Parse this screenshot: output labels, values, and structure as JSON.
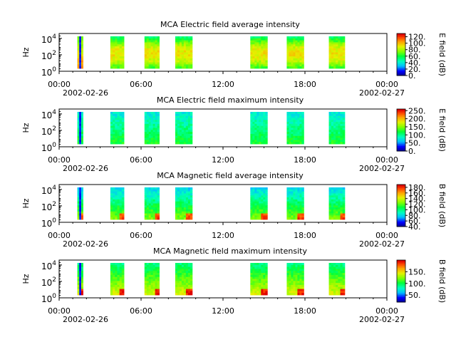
{
  "chart_data": [
    {
      "type": "heatmap",
      "title": "MCA  Electric field average intensity",
      "ylabel": "Hz",
      "ytick_labels": [
        {
          "base": "10",
          "exp": "0"
        },
        {
          "base": "10",
          "exp": "2"
        },
        {
          "base": "10",
          "exp": "4"
        }
      ],
      "xtick_labels": [
        "00:00",
        "06:00",
        "12:00",
        "18:00",
        "00:00"
      ],
      "date_labels": [
        "2002-02-26",
        "2002-02-27"
      ],
      "colorbar": {
        "label": "E field (dB)",
        "range": [
          0,
          130
        ],
        "tick_labels": [
          "0.",
          "20.",
          "40.",
          "60.",
          "80.",
          "100.",
          "120."
        ],
        "tick_values": [
          0,
          20,
          40,
          60,
          80,
          100,
          120
        ]
      },
      "style": "avg-e"
    },
    {
      "type": "heatmap",
      "title": "MCA  Electric field maximum intensity",
      "ylabel": "Hz",
      "ytick_labels": [
        {
          "base": "10",
          "exp": "0"
        },
        {
          "base": "10",
          "exp": "2"
        },
        {
          "base": "10",
          "exp": "4"
        }
      ],
      "xtick_labels": [
        "00:00",
        "06:00",
        "12:00",
        "18:00",
        "00:00"
      ],
      "date_labels": [
        "2002-02-26",
        "2002-02-27"
      ],
      "colorbar": {
        "label": "E field (dB)",
        "range": [
          0,
          260
        ],
        "tick_labels": [
          "0.",
          "50.",
          "100.",
          "150.",
          "200.",
          "250."
        ],
        "tick_values": [
          0,
          50,
          100,
          150,
          200,
          250
        ]
      },
      "style": "max-e"
    },
    {
      "type": "heatmap",
      "title": "MCA  Magnetic field average intensity",
      "ylabel": "Hz",
      "ytick_labels": [
        {
          "base": "10",
          "exp": "0"
        },
        {
          "base": "10",
          "exp": "2"
        },
        {
          "base": "10",
          "exp": "4"
        }
      ],
      "xtick_labels": [
        "00:00",
        "06:00",
        "12:00",
        "18:00",
        "00:00"
      ],
      "date_labels": [
        "2002-02-26",
        "2002-02-27"
      ],
      "colorbar": {
        "label": "B field (dB)",
        "range": [
          40,
          190
        ],
        "tick_labels": [
          "40.",
          "60.",
          "80.",
          "100.",
          "120.",
          "140.",
          "160.",
          "180."
        ],
        "tick_values": [
          40,
          60,
          80,
          100,
          120,
          140,
          160,
          180
        ]
      },
      "style": "avg-b"
    },
    {
      "type": "heatmap",
      "title": "MCA  Magnetic field maximum intensity",
      "ylabel": "Hz",
      "ytick_labels": [
        {
          "base": "10",
          "exp": "0"
        },
        {
          "base": "10",
          "exp": "2"
        },
        {
          "base": "10",
          "exp": "4"
        }
      ],
      "xtick_labels": [
        "00:00",
        "06:00",
        "12:00",
        "18:00",
        "00:00"
      ],
      "date_labels": [
        "2002-02-26",
        "2002-02-27"
      ],
      "colorbar": {
        "label": "B field (dB)",
        "range": [
          20,
          200
        ],
        "tick_labels": [
          "50.",
          "100.",
          "150."
        ],
        "tick_values": [
          50,
          100,
          150
        ]
      },
      "style": "max-b"
    }
  ],
  "time_axis": {
    "start": "2002-02-26 00:00",
    "end": "2002-02-27 00:00"
  },
  "data_intervals": [
    {
      "start": "01:20",
      "end": "01:45"
    },
    {
      "start": "03:45",
      "end": "04:45"
    },
    {
      "start": "06:15",
      "end": "07:20"
    },
    {
      "start": "08:30",
      "end": "09:45"
    },
    {
      "start": "14:00",
      "end": "15:15"
    },
    {
      "start": "16:40",
      "end": "17:55"
    },
    {
      "start": "19:45",
      "end": "20:55"
    }
  ]
}
